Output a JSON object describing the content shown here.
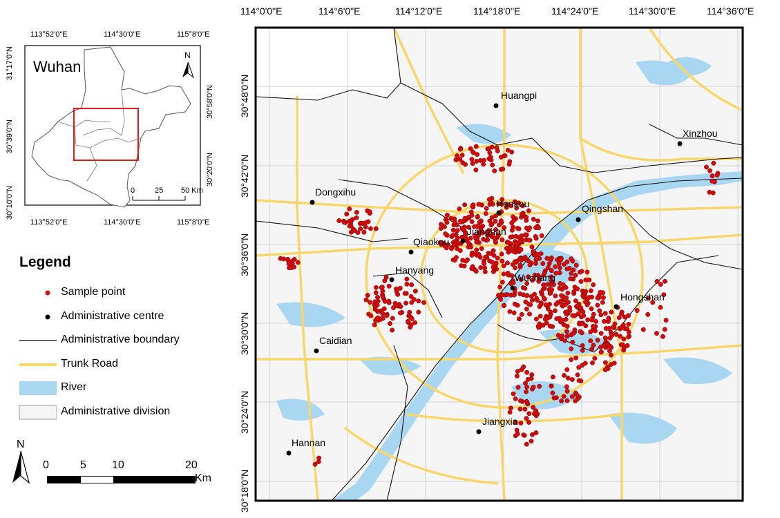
{
  "inset": {
    "city_label": "Wuhan",
    "north_label": "N",
    "x_ticks_top": [
      "113°52'0\"E",
      "114°30'0\"E",
      "115°8'0\"E"
    ],
    "x_ticks_bottom": [
      "113°52'0\"E",
      "114°30'0\"E",
      "115°8'0\"E"
    ],
    "y_ticks_left": [
      "31°17'0\"N",
      "30°39'0\"N",
      "30°10'0\"N"
    ],
    "y_ticks_right": [
      "30°58'0\"N",
      "30°20'0\"N"
    ],
    "scale_labels": [
      "0",
      "25",
      "50 Km"
    ]
  },
  "main_map": {
    "x_ticks": [
      "114°0'0\"E",
      "114°6'0\"E",
      "114°12'0\"E",
      "114°18'0\"E",
      "114°24'0\"E",
      "114°30'0\"E",
      "114°36'0\"E"
    ],
    "y_ticks": [
      "30°48'0\"N",
      "30°42'0\"N",
      "30°36'0\"N",
      "30°30'0\"N",
      "30°24'0\"N",
      "30°18'0\"N"
    ],
    "places": [
      {
        "name": "Huangpi"
      },
      {
        "name": "Xinzhou"
      },
      {
        "name": "Dongxihu"
      },
      {
        "name": "Hankou"
      },
      {
        "name": "Qingshan"
      },
      {
        "name": "Jianghan"
      },
      {
        "name": "Qiaokou"
      },
      {
        "name": "Hanyang"
      },
      {
        "name": "Wuchang"
      },
      {
        "name": "Hongshan"
      },
      {
        "name": "Caidian"
      },
      {
        "name": "Jiangxia"
      },
      {
        "name": "Hannan"
      }
    ]
  },
  "legend": {
    "title": "Legend",
    "items": [
      {
        "label": "Sample point",
        "color": "#d10b0b",
        "symbol": "red-dot-icon"
      },
      {
        "label": "Administrative centre",
        "color": "#000000",
        "symbol": "black-dot-icon"
      },
      {
        "label": "Administrative boundary",
        "color": "#000000",
        "symbol": "line-icon"
      },
      {
        "label": "Trunk Road",
        "color": "#f7d66a",
        "symbol": "road-line-icon"
      },
      {
        "label": "River",
        "color": "#a9d7f2",
        "symbol": "river-patch-icon"
      },
      {
        "label": "Administrative division",
        "color": "#f5f5f5",
        "symbol": "division-patch-icon"
      }
    ]
  },
  "north_arrow": {
    "label": "N"
  },
  "scale_bar": {
    "labels": [
      "0",
      "5",
      "10",
      "20"
    ],
    "unit": "Km"
  },
  "colors": {
    "sample_point": "#d10b0b",
    "road": "#f7d66a",
    "river": "#a9d7f2",
    "division": "#f5f5f5",
    "inset_frame": "#e21b1b"
  }
}
